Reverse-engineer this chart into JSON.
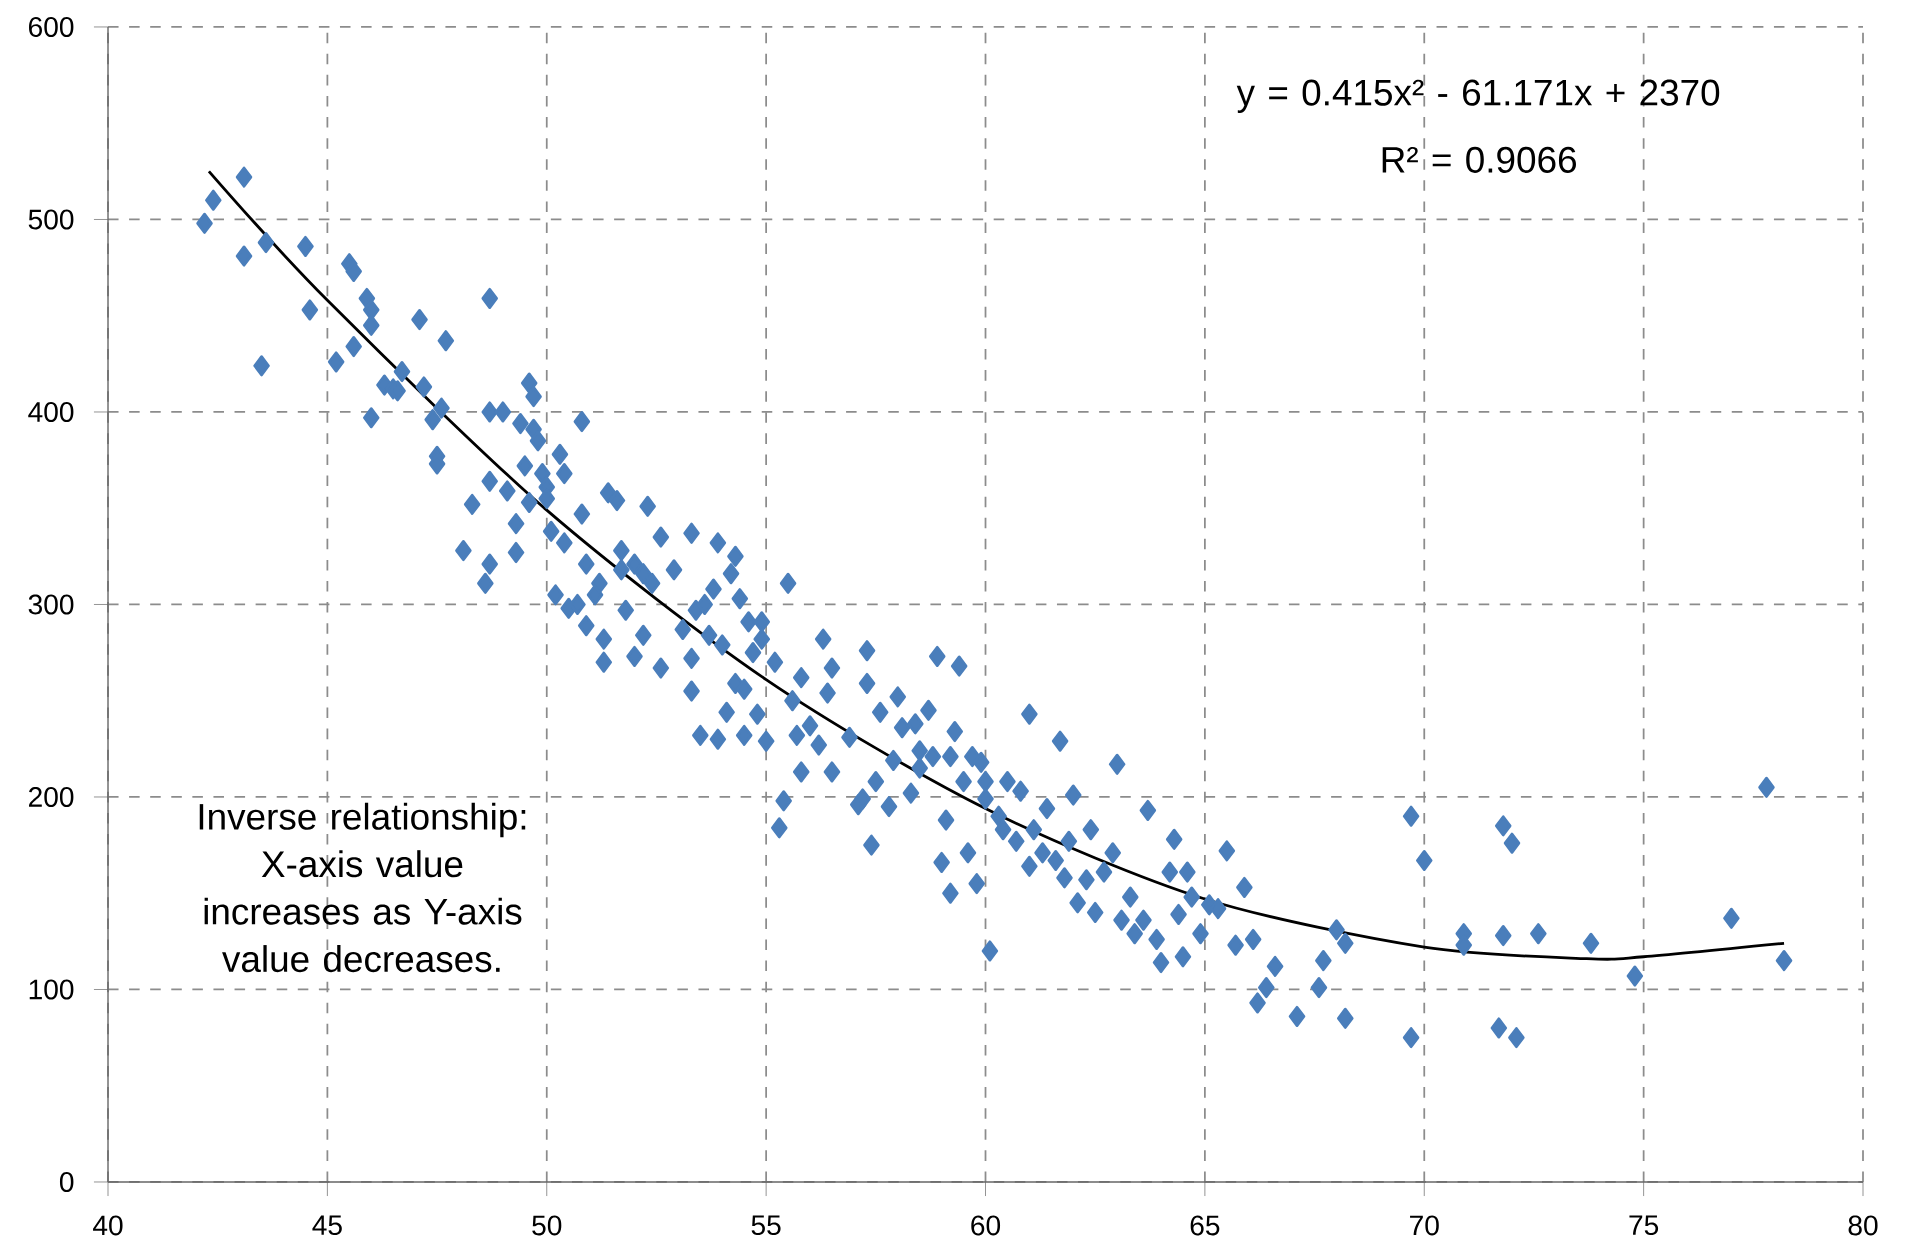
{
  "chart_data": {
    "type": "scatter",
    "marker": "diamond",
    "grid": true,
    "xlim": [
      40,
      80
    ],
    "ylim": [
      0,
      600
    ],
    "xticks": [
      40,
      45,
      50,
      55,
      60,
      65,
      70,
      75,
      80
    ],
    "yticks": [
      0,
      100,
      200,
      300,
      400,
      500,
      600
    ],
    "annotations": [
      "y = 0.415x² - 61.171x + 2370",
      "R² = 0.9066",
      "Inverse relationship: X-axis value increases as Y-axis value decreases."
    ],
    "series": [
      {
        "color": "#4a7ebb",
        "x": [
          42.2,
          42.4,
          43.1,
          43.1,
          43.6,
          43.5,
          44.5,
          44.6,
          45.5,
          45.6,
          45.6,
          45.2,
          45.9,
          46.0,
          46.0,
          46.0,
          46.3,
          46.5,
          46.7,
          46.6,
          47.1,
          47.2,
          47.4,
          47.5,
          47.5,
          47.7,
          47.6,
          48.1,
          48.3,
          48.6,
          48.7,
          48.7,
          48.7,
          48.7,
          49.0,
          49.1,
          49.3,
          49.3,
          49.4,
          49.5,
          49.6,
          49.6,
          49.7,
          49.7,
          49.8,
          49.9,
          50.0,
          50.0,
          50.1,
          50.2,
          50.3,
          50.4,
          50.4,
          50.5,
          50.7,
          50.8,
          50.8,
          50.9,
          50.9,
          51.1,
          51.2,
          51.3,
          51.3,
          51.4,
          51.6,
          51.7,
          51.7,
          51.8,
          52.0,
          52.0,
          52.2,
          52.2,
          52.3,
          52.4,
          52.6,
          52.6,
          52.9,
          53.1,
          53.3,
          53.3,
          53.4,
          53.5,
          53.3,
          53.6,
          53.7,
          53.8,
          53.9,
          53.9,
          54.0,
          54.1,
          54.2,
          54.3,
          54.3,
          54.4,
          54.5,
          54.5,
          54.6,
          54.7,
          54.8,
          54.9,
          54.9,
          55.0,
          55.2,
          55.3,
          55.4,
          55.5,
          55.6,
          55.7,
          55.8,
          55.8,
          56.0,
          56.2,
          56.3,
          56.4,
          56.5,
          56.5,
          56.9,
          57.1,
          57.2,
          57.3,
          57.3,
          57.4,
          57.5,
          57.6,
          57.8,
          57.9,
          58.0,
          58.1,
          58.3,
          58.4,
          58.5,
          58.5,
          58.7,
          58.8,
          58.9,
          59.0,
          59.1,
          59.2,
          59.2,
          59.3,
          59.4,
          59.5,
          59.6,
          59.7,
          59.8,
          59.9,
          60.0,
          60.0,
          60.1,
          60.3,
          60.4,
          60.5,
          60.7,
          60.8,
          61.0,
          61.0,
          61.1,
          61.3,
          61.4,
          61.6,
          61.7,
          61.8,
          61.9,
          62.0,
          62.1,
          62.3,
          62.4,
          62.5,
          62.7,
          62.9,
          63.0,
          63.1,
          63.3,
          63.4,
          63.6,
          63.7,
          63.9,
          64.0,
          64.2,
          64.3,
          64.4,
          64.5,
          64.6,
          64.7,
          64.9,
          65.1,
          65.3,
          65.5,
          65.7,
          65.9,
          66.1,
          66.2,
          66.4,
          66.6,
          67.1,
          67.6,
          67.7,
          68.0,
          68.2,
          68.2,
          69.7,
          69.7,
          70.0,
          70.9,
          70.9,
          71.7,
          71.8,
          71.8,
          72.0,
          72.1,
          72.6,
          73.8,
          74.8,
          77.0,
          77.8,
          78.2
        ],
        "values": [
          498,
          510,
          522,
          481,
          488,
          424,
          486,
          453,
          477,
          473,
          434,
          426,
          459,
          453,
          445,
          397,
          414,
          412,
          421,
          411,
          448,
          413,
          396,
          377,
          373,
          437,
          402,
          328,
          352,
          311,
          321,
          459,
          400,
          364,
          400,
          359,
          327,
          342,
          394,
          372,
          353,
          415,
          408,
          391,
          385,
          368,
          361,
          355,
          338,
          305,
          378,
          368,
          332,
          298,
          300,
          395,
          347,
          289,
          321,
          305,
          311,
          282,
          270,
          358,
          354,
          318,
          328,
          297,
          321,
          273,
          284,
          316,
          351,
          311,
          267,
          335,
          318,
          287,
          337,
          272,
          297,
          232,
          255,
          300,
          284,
          308,
          230,
          332,
          279,
          244,
          316,
          325,
          259,
          303,
          232,
          256,
          291,
          275,
          243,
          291,
          282,
          229,
          270,
          184,
          198,
          311,
          250,
          232,
          213,
          262,
          237,
          227,
          282,
          254,
          267,
          213,
          231,
          196,
          199,
          259,
          276,
          175,
          208,
          244,
          195,
          219,
          252,
          236,
          202,
          238,
          224,
          215,
          245,
          221,
          273,
          166,
          188,
          150,
          221,
          234,
          268,
          208,
          171,
          221,
          155,
          218,
          208,
          199,
          120,
          190,
          183,
          208,
          177,
          203,
          243,
          164,
          183,
          171,
          194,
          167,
          229,
          158,
          177,
          201,
          145,
          157,
          183,
          140,
          161,
          171,
          217,
          136,
          148,
          129,
          136,
          193,
          126,
          114,
          161,
          178,
          139,
          117,
          161,
          148,
          129,
          144,
          142,
          172,
          123,
          153,
          126,
          93,
          101,
          112,
          86,
          101,
          115,
          131,
          85,
          124,
          75,
          190,
          167,
          129,
          123,
          80,
          185,
          128,
          176,
          75,
          129,
          124,
          107,
          137,
          205,
          115
        ]
      },
      {
        "type": "line",
        "color": "#000000",
        "marker": "none",
        "x": [
          42.3,
          45,
          50,
          55,
          60,
          65,
          70,
          73.7,
          75,
          78.2
        ],
        "values": [
          525,
          458,
          349,
          261,
          194,
          147,
          122,
          116,
          117,
          124
        ]
      }
    ]
  }
}
